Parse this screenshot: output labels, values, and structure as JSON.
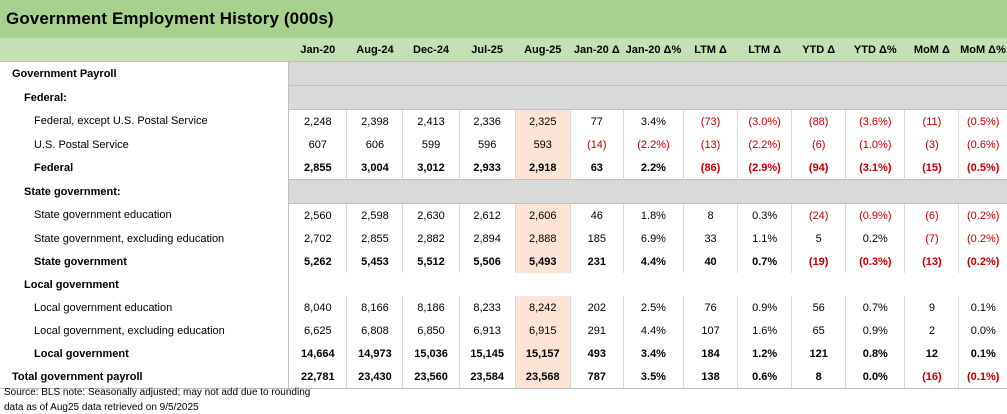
{
  "title": "Government Employment History (000s)",
  "columns": [
    "Jan-20",
    "Aug-24",
    "Dec-24",
    "Jul-25",
    "Aug-25",
    "Jan-20 Δ",
    "Jan-20 Δ%",
    "LTM Δ",
    "LTM Δ",
    "YTD Δ",
    "YTD Δ%",
    "MoM Δ",
    "MoM Δ%"
  ],
  "rows": [
    {
      "label": "Government Payroll",
      "kind": "section"
    },
    {
      "label": "Federal:",
      "kind": "subsection"
    },
    {
      "label": "Federal, except U.S. Postal Service",
      "kind": "item",
      "values": [
        "2,248",
        "2,398",
        "2,413",
        "2,336",
        "2,325",
        "77",
        "3.4%",
        "(73)",
        "(3.0%)",
        "(88)",
        "(3.6%)",
        "(11)",
        "(0.5%)"
      ]
    },
    {
      "label": "U.S. Postal Service",
      "kind": "item",
      "values": [
        "607",
        "606",
        "599",
        "596",
        "593",
        "(14)",
        "(2.2%)",
        "(13)",
        "(2.2%)",
        "(6)",
        "(1.0%)",
        "(3)",
        "(0.6%)"
      ]
    },
    {
      "label": "Federal",
      "kind": "total",
      "values": [
        "2,855",
        "3,004",
        "3,012",
        "2,933",
        "2,918",
        "63",
        "2.2%",
        "(86)",
        "(2.9%)",
        "(94)",
        "(3.1%)",
        "(15)",
        "(0.5%)"
      ]
    },
    {
      "label": "State government:",
      "kind": "subsection"
    },
    {
      "label": "State government education",
      "kind": "item",
      "values": [
        "2,560",
        "2,598",
        "2,630",
        "2,612",
        "2,606",
        "46",
        "1.8%",
        "8",
        "0.3%",
        "(24)",
        "(0.9%)",
        "(6)",
        "(0.2%)"
      ]
    },
    {
      "label": "State government, excluding education",
      "kind": "item",
      "values": [
        "2,702",
        "2,855",
        "2,882",
        "2,894",
        "2,888",
        "185",
        "6.9%",
        "33",
        "1.1%",
        "5",
        "0.2%",
        "(7)",
        "(0.2%)"
      ]
    },
    {
      "label": "State government",
      "kind": "total",
      "values": [
        "5,262",
        "5,453",
        "5,512",
        "5,506",
        "5,493",
        "231",
        "4.4%",
        "40",
        "0.7%",
        "(19)",
        "(0.3%)",
        "(13)",
        "(0.2%)"
      ]
    },
    {
      "label": "Local government",
      "kind": "subsection-plain"
    },
    {
      "label": "Local government education",
      "kind": "item",
      "values": [
        "8,040",
        "8,166",
        "8,186",
        "8,233",
        "8,242",
        "202",
        "2.5%",
        "76",
        "0.9%",
        "56",
        "0.7%",
        "9",
        "0.1%"
      ]
    },
    {
      "label": "Local government, excluding education",
      "kind": "item",
      "values": [
        "6,625",
        "6,808",
        "6,850",
        "6,913",
        "6,915",
        "291",
        "4.4%",
        "107",
        "1.6%",
        "65",
        "0.9%",
        "2",
        "0.0%"
      ]
    },
    {
      "label": "Local government",
      "kind": "total",
      "values": [
        "14,664",
        "14,973",
        "15,036",
        "15,145",
        "15,157",
        "493",
        "3.4%",
        "184",
        "1.2%",
        "121",
        "0.8%",
        "12",
        "0.1%"
      ]
    },
    {
      "label": "Total government payroll",
      "kind": "grand",
      "values": [
        "22,781",
        "23,430",
        "23,560",
        "23,584",
        "23,568",
        "787",
        "3.5%",
        "138",
        "0.6%",
        "8",
        "0.0%",
        "(16)",
        "(0.1%)"
      ]
    }
  ],
  "footer": {
    "line1": "Source: BLS   note: Seasonally adjusted; may not add due to rounding",
    "line2": "data as of Aug25    data retrieved on 9/5/2025"
  },
  "colors": {
    "title_bg": "#a9d18e",
    "header_bg": "#c5e0b4",
    "highlight": "#fbe4d5",
    "negative": "#c00000",
    "grey_fill": "#d9d9d9"
  }
}
